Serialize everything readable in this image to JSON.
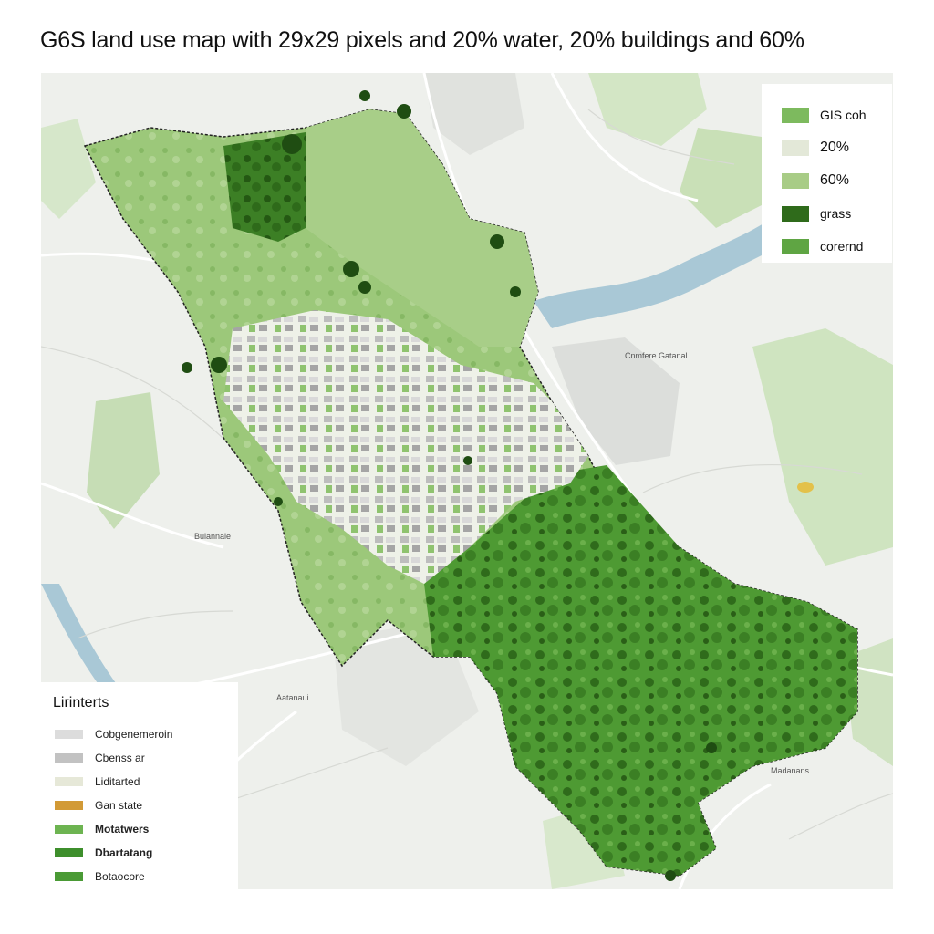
{
  "title": "G6S land use map with 29x29 pixels and 20% water, 20% buildings and 60%",
  "legend_top": [
    {
      "label": "GIS coh",
      "color": "#7dba5e",
      "size": "small"
    },
    {
      "label": "20%",
      "color": "#e3e8d8",
      "size": "normal"
    },
    {
      "label": "60%",
      "color": "#a8cc86",
      "size": "normal"
    },
    {
      "label": "grass",
      "color": "#2f6b1b",
      "size": "small"
    },
    {
      "label": "corernd",
      "color": "#5fa543",
      "size": "small"
    }
  ],
  "legend_bottom": {
    "title": "Lirinterts",
    "items": [
      {
        "label": "Cobgenemeroin",
        "color": "#dcdcdc",
        "bold": false
      },
      {
        "label": "Cbenss ar",
        "color": "#c2c2c2",
        "bold": false
      },
      {
        "label": "Liditarted",
        "color": "#e6e8d8",
        "bold": false
      },
      {
        "label": "Gan state",
        "color": "#d29a36",
        "bold": false
      },
      {
        "label": "Motatwers",
        "color": "#6db451",
        "bold": true
      },
      {
        "label": "Dbartatang",
        "color": "#3e8f2c",
        "bold": true
      },
      {
        "label": "Botaocore",
        "color": "#4a9a35",
        "bold": false
      }
    ]
  },
  "place_labels": [
    {
      "text": "Cnmfere Gatanal"
    },
    {
      "text": "Aatanaui"
    },
    {
      "text": "Bulannale"
    },
    {
      "text": "Madanans"
    }
  ]
}
